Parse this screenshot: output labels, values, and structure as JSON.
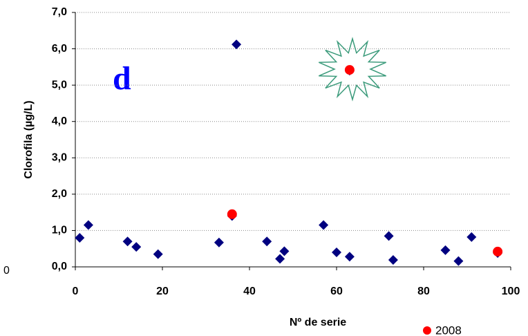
{
  "chart_data": {
    "type": "scatter",
    "x_label": "Nº de serie",
    "y_label": "Clorofila (µg/L)",
    "annotation": "d",
    "xlim": [
      0,
      100
    ],
    "xticks": [
      0,
      20,
      40,
      60,
      80,
      100
    ],
    "ylim": [
      0,
      7
    ],
    "yticks": [
      {
        "value": 0,
        "label": "0,0"
      },
      {
        "value": 1,
        "label": "1,0"
      },
      {
        "value": 2,
        "label": "2,0"
      },
      {
        "value": 3,
        "label": "3,0"
      },
      {
        "value": 4,
        "label": "4,0"
      },
      {
        "value": 5,
        "label": "5,0"
      },
      {
        "value": 6,
        "label": "6,0"
      },
      {
        "value": 7,
        "label": "7,0"
      }
    ],
    "grid": true,
    "legend": "bottom-right",
    "series": [
      {
        "color": "#000080",
        "marker": "diamond",
        "x": [
          1,
          3,
          12,
          14,
          19,
          33,
          36,
          37,
          44,
          47,
          48,
          57,
          60,
          63,
          63,
          72,
          73,
          85,
          88,
          91,
          97
        ],
        "values": [
          0.8,
          1.15,
          0.7,
          0.55,
          0.35,
          0.67,
          1.4,
          6.12,
          0.7,
          0.22,
          0.43,
          1.15,
          0.4,
          0.28,
          5.4,
          0.85,
          0.19,
          0.46,
          0.16,
          0.82,
          0.38
        ]
      },
      {
        "name": "2008",
        "color": "#ff0000",
        "marker": "circle",
        "x": [
          36,
          63,
          97
        ],
        "values": [
          1.45,
          5.42,
          0.42
        ]
      }
    ]
  }
}
